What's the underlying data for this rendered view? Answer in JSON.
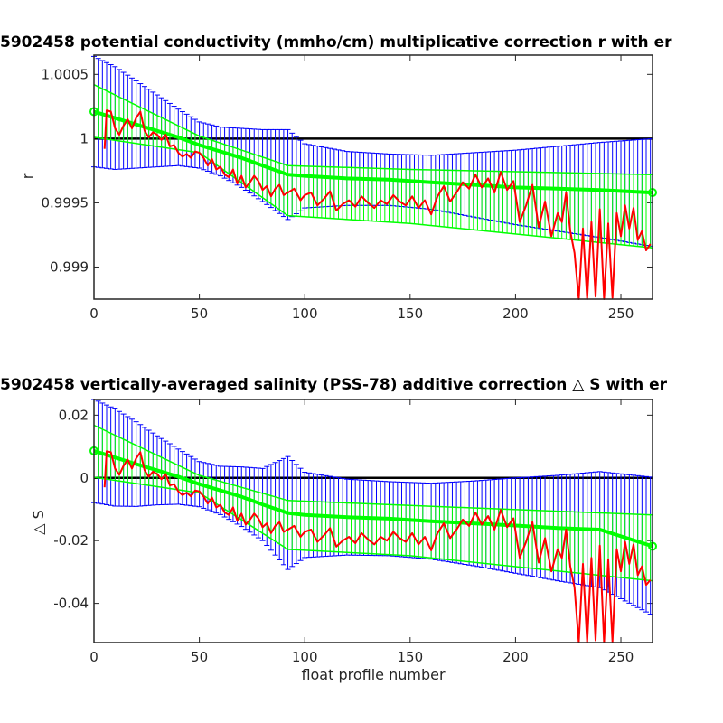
{
  "chart_data": [
    {
      "type": "line",
      "title": "5902458 potential conductivity (mmho/cm) multiplicative correction r with er",
      "xlabel": "",
      "ylabel": "r",
      "xlim": [
        0,
        265
      ],
      "ylim": [
        0.99875,
        1.00065
      ],
      "xticks": [
        0,
        50,
        100,
        150,
        200,
        250
      ],
      "xtick_labels": [
        "0",
        "50",
        "100",
        "150",
        "200",
        "250"
      ],
      "yticks": [
        0.999,
        0.9995,
        1,
        1.0005
      ],
      "ytick_labels": [
        "0.999",
        "0.9995",
        "1",
        "1.0005"
      ],
      "reference_line": 1,
      "colors": {
        "reference": "#000000",
        "error_bars": "#0000ff",
        "fit": "#00ff00",
        "measured": "#ff0000"
      },
      "series": [
        {
          "role": "fit_with_error",
          "x": [
            0,
            10,
            20,
            30,
            40,
            50,
            60,
            70,
            80,
            92,
            100,
            120,
            140,
            160,
            180,
            200,
            220,
            240,
            265
          ],
          "y": [
            1.00021,
            1.00016,
            1.00011,
            1.00006,
            1.00001,
            0.99995,
            0.9999,
            0.99985,
            0.99979,
            0.99972,
            0.99971,
            0.99969,
            0.99968,
            0.99966,
            0.99964,
            0.99962,
            0.99961,
            0.9996,
            0.99958
          ],
          "err": [
            0.00043,
            0.0004,
            0.00034,
            0.00028,
            0.00022,
            0.00018,
            0.00019,
            0.00023,
            0.00028,
            0.00035,
            0.00025,
            0.00021,
            0.0002,
            0.00021,
            0.00025,
            0.00029,
            0.00033,
            0.00037,
            0.00042
          ]
        },
        {
          "role": "fit_upper",
          "x": [
            0,
            50,
            92,
            150,
            265
          ],
          "y": [
            1.00042,
            1.00002,
            0.99979,
            0.99976,
            0.99972
          ]
        },
        {
          "role": "fit_lower",
          "x": [
            0,
            50,
            92,
            150,
            265
          ],
          "y": [
            1.00001,
            0.99989,
            0.9994,
            0.99934,
            0.99915
          ]
        },
        {
          "role": "measured",
          "x": [
            5,
            6,
            8,
            10,
            12,
            14,
            16,
            18,
            20,
            22,
            24,
            26,
            28,
            30,
            32,
            34,
            36,
            38,
            40,
            42,
            44,
            46,
            48,
            50,
            52,
            54,
            56,
            58,
            60,
            62,
            64,
            66,
            68,
            70,
            72,
            74,
            76,
            78,
            80,
            82,
            84,
            86,
            88,
            90,
            92,
            95,
            98,
            100,
            103,
            106,
            109,
            112,
            115,
            118,
            121,
            124,
            127,
            130,
            133,
            136,
            139,
            142,
            145,
            148,
            151,
            154,
            157,
            160,
            163,
            166,
            169,
            172,
            175,
            178,
            181,
            184,
            187,
            190,
            193,
            196,
            199,
            202,
            205,
            208,
            211,
            214,
            217,
            220,
            222,
            224,
            226,
            228,
            230,
            232,
            234,
            236,
            238,
            240,
            242,
            244,
            246,
            248,
            250,
            252,
            254,
            256,
            258,
            260,
            262,
            264
          ],
          "y": [
            0.99992,
            1.00022,
            1.00021,
            1.00008,
            1.00003,
            1.0001,
            1.00015,
            1.00008,
            1.00016,
            1.00021,
            1.00006,
            1.00001,
            1.00005,
            1.00003,
            0.99999,
            1.00003,
            0.99994,
            0.99995,
            0.99989,
            0.99986,
            0.99988,
            0.99985,
            0.9999,
            0.99989,
            0.99985,
            0.99979,
            0.99984,
            0.99976,
            0.99978,
            0.99972,
            0.9997,
            0.99976,
            0.99965,
            0.99971,
            0.99962,
            0.99966,
            0.99971,
            0.99967,
            0.9996,
            0.99963,
            0.99955,
            0.99961,
            0.99964,
            0.99956,
            0.99958,
            0.99961,
            0.99952,
            0.99956,
            0.99958,
            0.99948,
            0.99953,
            0.99959,
            0.99944,
            0.99949,
            0.99952,
            0.99947,
            0.99955,
            0.9995,
            0.99946,
            0.99952,
            0.99949,
            0.99956,
            0.99951,
            0.99948,
            0.99955,
            0.99946,
            0.99952,
            0.99941,
            0.99955,
            0.99963,
            0.99951,
            0.99958,
            0.99966,
            0.99961,
            0.99972,
            0.99962,
            0.99969,
            0.99958,
            0.99974,
            0.9996,
            0.99967,
            0.99935,
            0.99948,
            0.99964,
            0.99931,
            0.99951,
            0.99924,
            0.99942,
            0.99935,
            0.99958,
            0.99928,
            0.99911,
            0.99875,
            0.9993,
            0.99875,
            0.99935,
            0.99877,
            0.99945,
            0.99875,
            0.99934,
            0.99876,
            0.99942,
            0.99924,
            0.99948,
            0.9993,
            0.99946,
            0.99921,
            0.99928,
            0.99913,
            0.99918
          ]
        }
      ]
    },
    {
      "type": "line",
      "title": "5902458 vertically-averaged salinity (PSS-78) additive correction △ S with er",
      "xlabel": "float profile number",
      "ylabel": "△ S",
      "xlim": [
        0,
        265
      ],
      "ylim": [
        -0.0525,
        0.025
      ],
      "xticks": [
        0,
        50,
        100,
        150,
        200,
        250
      ],
      "xtick_labels": [
        "0",
        "50",
        "100",
        "150",
        "200",
        "250"
      ],
      "yticks": [
        -0.04,
        -0.02,
        0,
        0.02
      ],
      "ytick_labels": [
        "-0.04",
        "-0.02",
        "0",
        "0.02"
      ],
      "reference_line": 0,
      "colors": {
        "reference": "#000000",
        "error_bars": "#0000ff",
        "fit": "#00ff00",
        "measured": "#ff0000"
      },
      "series": [
        {
          "role": "fit_with_error",
          "x": [
            0,
            10,
            20,
            30,
            40,
            50,
            60,
            70,
            80,
            92,
            100,
            120,
            140,
            160,
            180,
            200,
            220,
            240,
            265
          ],
          "y": [
            0.0086,
            0.0065,
            0.0044,
            0.0024,
            0.0004,
            -0.002,
            -0.004,
            -0.006,
            -0.0085,
            -0.0112,
            -0.0118,
            -0.0125,
            -0.013,
            -0.0138,
            -0.0145,
            -0.0152,
            -0.016,
            -0.0165,
            -0.0218
          ],
          "err": [
            0.0165,
            0.0155,
            0.0135,
            0.011,
            0.0088,
            0.0072,
            0.0077,
            0.0095,
            0.0115,
            0.018,
            0.0136,
            0.0121,
            0.0118,
            0.0121,
            0.0135,
            0.0152,
            0.0168,
            0.0185,
            0.022
          ]
        },
        {
          "role": "fit_upper",
          "x": [
            0,
            50,
            92,
            150,
            265
          ],
          "y": [
            0.0168,
            0.0008,
            -0.0072,
            -0.0088,
            -0.0118
          ]
        },
        {
          "role": "fit_lower",
          "x": [
            0,
            50,
            92,
            150,
            265
          ],
          "y": [
            0.0002,
            -0.0048,
            -0.0228,
            -0.0248,
            -0.0328
          ]
        },
        {
          "role": "measured",
          "x": [
            5,
            6,
            8,
            10,
            12,
            14,
            16,
            18,
            20,
            22,
            24,
            26,
            28,
            30,
            32,
            34,
            36,
            38,
            40,
            42,
            44,
            46,
            48,
            50,
            52,
            54,
            56,
            58,
            60,
            62,
            64,
            66,
            68,
            70,
            72,
            74,
            76,
            78,
            80,
            82,
            84,
            86,
            88,
            90,
            92,
            95,
            98,
            100,
            103,
            106,
            109,
            112,
            115,
            118,
            121,
            124,
            127,
            130,
            133,
            136,
            139,
            142,
            145,
            148,
            151,
            154,
            157,
            160,
            163,
            166,
            169,
            172,
            175,
            178,
            181,
            184,
            187,
            190,
            193,
            196,
            199,
            202,
            205,
            208,
            211,
            214,
            217,
            220,
            222,
            224,
            226,
            228,
            230,
            232,
            234,
            236,
            238,
            240,
            242,
            244,
            246,
            248,
            250,
            252,
            254,
            256,
            258,
            260,
            262,
            264
          ],
          "y": [
            -0.003,
            0.0085,
            0.0082,
            0.003,
            0.001,
            0.0038,
            0.0058,
            0.003,
            0.0062,
            0.0082,
            0.0024,
            0.0004,
            0.002,
            0.0012,
            -0.0004,
            0.0012,
            -0.0024,
            -0.002,
            -0.0043,
            -0.0055,
            -0.0047,
            -0.0059,
            -0.004,
            -0.0043,
            -0.0059,
            -0.0082,
            -0.0063,
            -0.0094,
            -0.0086,
            -0.011,
            -0.0118,
            -0.0094,
            -0.0137,
            -0.0114,
            -0.0149,
            -0.0133,
            -0.0114,
            -0.0129,
            -0.0157,
            -0.0145,
            -0.0176,
            -0.0153,
            -0.0141,
            -0.0172,
            -0.0165,
            -0.0153,
            -0.0188,
            -0.0172,
            -0.0165,
            -0.0204,
            -0.0184,
            -0.016,
            -0.0219,
            -0.02,
            -0.0188,
            -0.0208,
            -0.0176,
            -0.0196,
            -0.0212,
            -0.0188,
            -0.02,
            -0.0172,
            -0.0192,
            -0.0204,
            -0.0176,
            -0.0212,
            -0.0188,
            -0.0231,
            -0.0176,
            -0.0145,
            -0.0192,
            -0.0165,
            -0.0133,
            -0.0153,
            -0.011,
            -0.0149,
            -0.0122,
            -0.0165,
            -0.0102,
            -0.0157,
            -0.0129,
            -0.0255,
            -0.0204,
            -0.0141,
            -0.027,
            -0.0192,
            -0.0298,
            -0.0227,
            -0.0255,
            -0.0165,
            -0.0282,
            -0.0349,
            -0.0525,
            -0.0274,
            -0.0525,
            -0.0255,
            -0.0518,
            -0.0216,
            -0.0525,
            -0.0259,
            -0.0522,
            -0.0227,
            -0.0298,
            -0.0204,
            -0.0274,
            -0.0212,
            -0.031,
            -0.0282,
            -0.0341,
            -0.0325
          ]
        }
      ]
    }
  ]
}
